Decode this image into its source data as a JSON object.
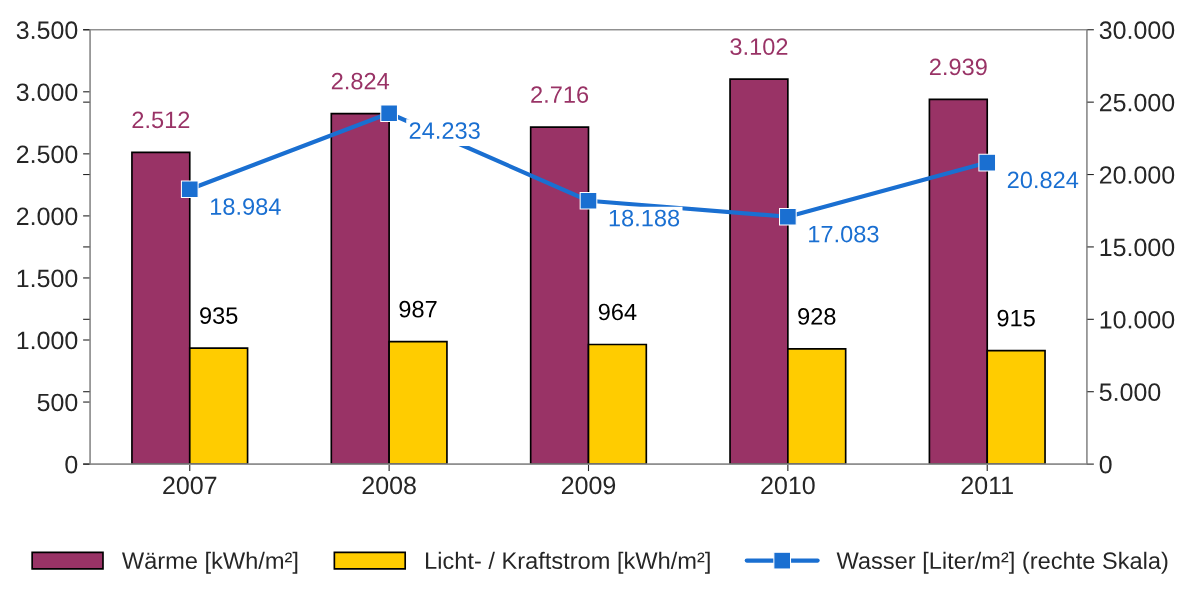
{
  "chart_data": {
    "type": "bar",
    "categories": [
      "2007",
      "2008",
      "2009",
      "2010",
      "2011"
    ],
    "series": [
      {
        "name": "Wärme [kWh/m²]",
        "color": "#993366",
        "values": [
          2512,
          2824,
          2716,
          3102,
          2939
        ],
        "value_labels": [
          "2.512",
          "2.824",
          "2.716",
          "3.102",
          "2.939"
        ]
      },
      {
        "name": "Licht- / Kraftstrom [kWh/m²]",
        "color": "#ffcc00",
        "values": [
          935,
          987,
          964,
          928,
          915
        ],
        "value_labels": [
          "935",
          "987",
          "964",
          "928",
          "915"
        ]
      },
      {
        "name": "Wasser [Liter/m²] (rechte Skala)",
        "type": "line",
        "axis": "y2",
        "color": "#1a6fd1",
        "marker": "square",
        "values": [
          18984,
          24233,
          18188,
          17083,
          20824
        ],
        "value_labels": [
          "18.984",
          "24.233",
          "18.188",
          "17.083",
          "20.824"
        ]
      }
    ],
    "ylim": [
      0,
      3500
    ],
    "yticks": [
      0,
      500,
      {
        "value": 1000,
        "label": "1.000"
      },
      {
        "value": 1500,
        "label": "1.500"
      },
      {
        "value": 2000,
        "label": "2.000"
      },
      {
        "value": 2500,
        "label": "2.500"
      },
      {
        "value": 3000,
        "label": "3.000"
      },
      {
        "value": 3500,
        "label": "3.500"
      }
    ],
    "y2lim": [
      0,
      30000
    ],
    "y2ticks": [
      0,
      {
        "value": 5000,
        "label": "5.000"
      },
      {
        "value": 10000,
        "label": "10.000"
      },
      {
        "value": 15000,
        "label": "15.000"
      },
      {
        "value": 20000,
        "label": "20.000"
      },
      {
        "value": 25000,
        "label": "25.000"
      },
      {
        "value": 30000,
        "label": "30.000"
      }
    ],
    "grid": false,
    "legend": "bottom"
  }
}
